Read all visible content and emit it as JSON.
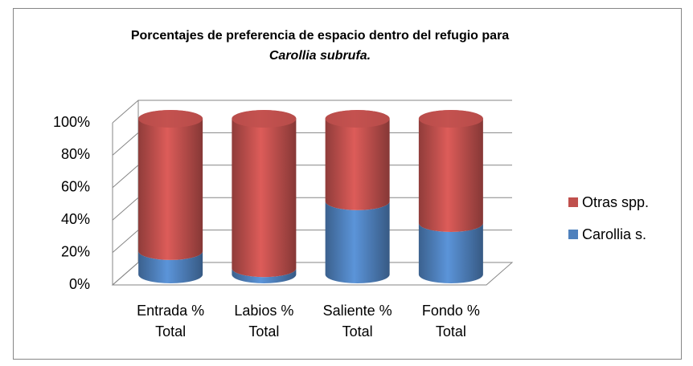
{
  "chart_data": {
    "type": "bar",
    "stacked": true,
    "three_d": "cylinder",
    "title": [
      "Porcentajes de preferencia de espacio dentro del refugio para",
      "Carollia subrufa."
    ],
    "categories": [
      "Entrada % Total",
      "Labios % Total",
      "Saliente % Total",
      "Fondo % Total"
    ],
    "series": [
      {
        "name": "Carollia s.",
        "color": "#4f81bd",
        "values": [
          15,
          4,
          47,
          33
        ]
      },
      {
        "name": "Otras spp.",
        "color": "#c0504d",
        "values": [
          85,
          96,
          53,
          67
        ]
      }
    ],
    "ylim": [
      0,
      100
    ],
    "yticks": [
      {
        "value": 0,
        "label": "0%"
      },
      {
        "value": 20,
        "label": "20%"
      },
      {
        "value": 40,
        "label": "40%"
      },
      {
        "value": 60,
        "label": "60%"
      },
      {
        "value": 80,
        "label": "80%"
      },
      {
        "value": 100,
        "label": "100%"
      }
    ],
    "grid": true,
    "legend": "right"
  }
}
